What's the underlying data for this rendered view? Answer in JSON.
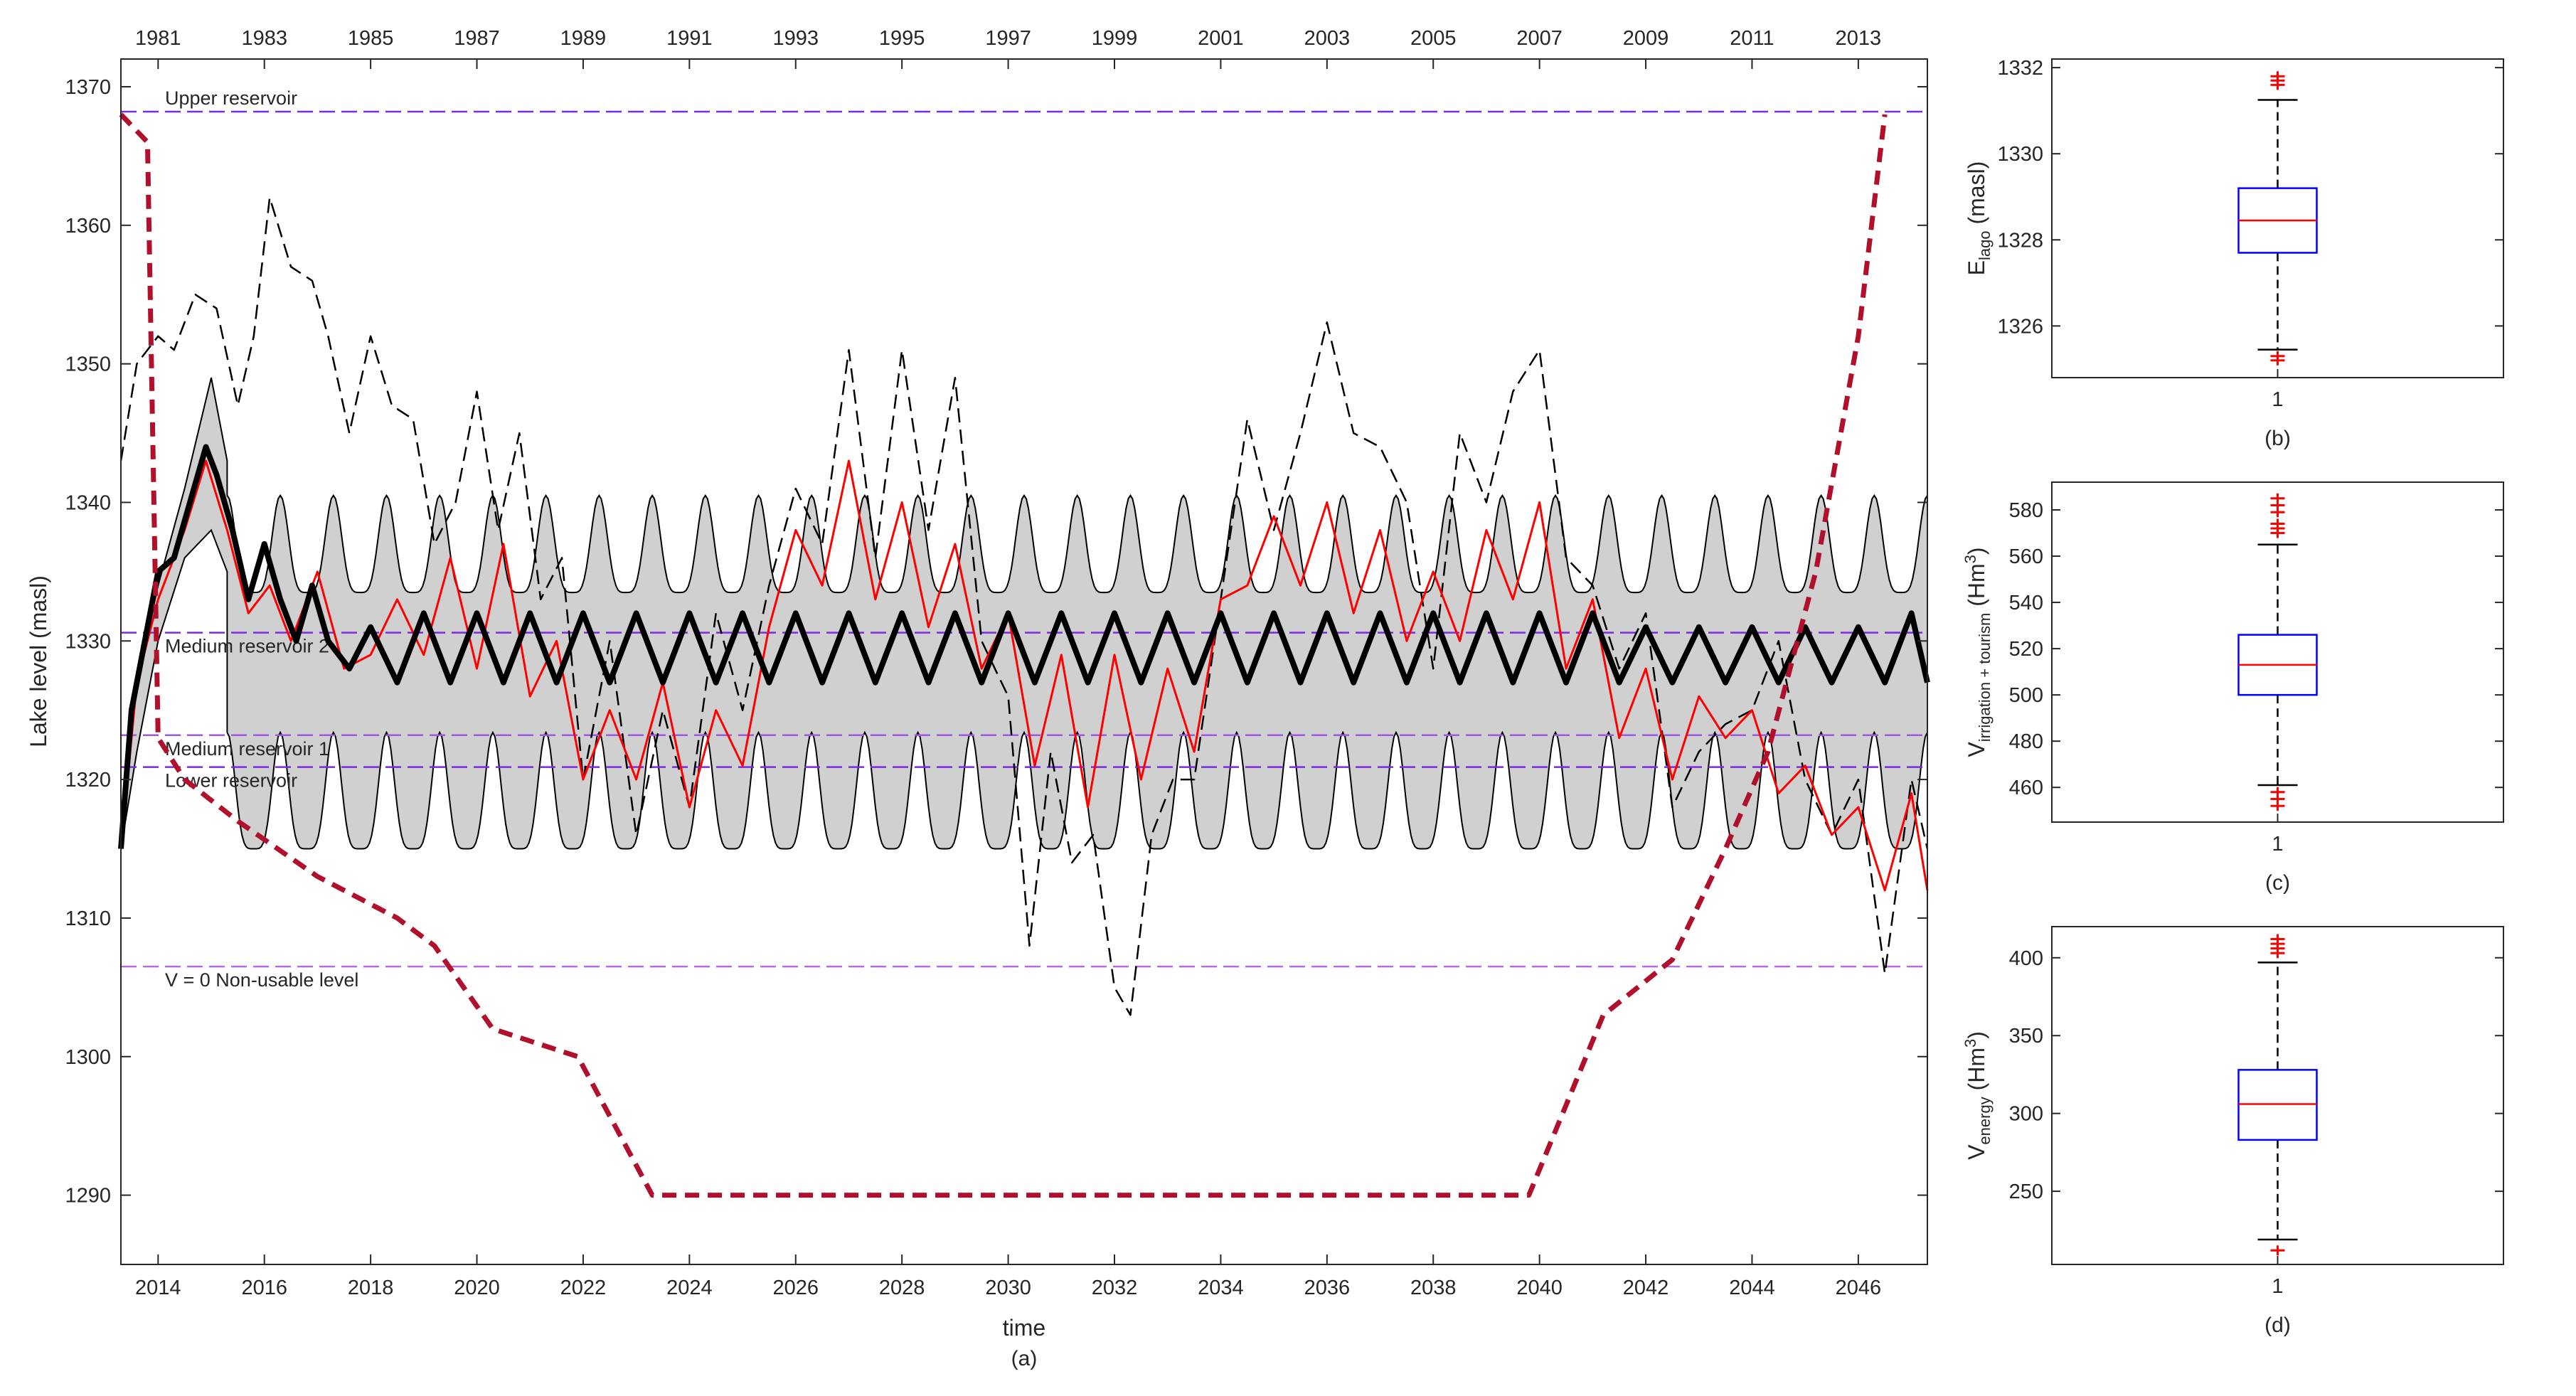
{
  "chart_data": [
    {
      "type": "line",
      "caption": "(a)",
      "xlabel": "time",
      "ylabel": "Lake level (masl)",
      "xlim": [
        2013.3,
        2047.3
      ],
      "ylim": [
        1285,
        1372
      ],
      "x_ticks": [
        "2014",
        "2016",
        "2018",
        "2020",
        "2022",
        "2024",
        "2026",
        "2028",
        "2030",
        "2032",
        "2034",
        "2036",
        "2038",
        "2040",
        "2042",
        "2044",
        "2046"
      ],
      "x_ticks_top": [
        "1981",
        "1983",
        "1985",
        "1987",
        "1989",
        "1991",
        "1993",
        "1995",
        "1997",
        "1999",
        "2001",
        "2003",
        "2005",
        "2007",
        "2009",
        "2011",
        "2013"
      ],
      "y_ticks": [
        "1290",
        "1300",
        "1310",
        "1320",
        "1330",
        "1340",
        "1350",
        "1360",
        "1370"
      ],
      "reference_lines": [
        {
          "label": "Upper reservoir",
          "y": 1368.2,
          "color": "#7b2ae0"
        },
        {
          "label": "Medium reservoir 2",
          "y": 1330.6,
          "color": "#7b2ae0"
        },
        {
          "label": "Medium reservoir 1",
          "y": 1323.2,
          "color": "#9b59e6"
        },
        {
          "label": "Lower reservoir",
          "y": 1320.9,
          "color": "#7b2ae0"
        },
        {
          "label": "V = 0 Non-usable level",
          "y": 1306.5,
          "color": "#b56be8"
        }
      ],
      "series": [
        {
          "style": "bold-black",
          "x": [
            2013.3,
            2013.5,
            2013.8,
            2014.0,
            2014.3,
            2014.6,
            2014.9,
            2015.1,
            2015.4,
            2015.7,
            2016.0,
            2016.3,
            2016.6,
            2016.9,
            2017.2,
            2017.6,
            2018.0,
            2018.5,
            2019.0,
            2019.5,
            2020.0,
            2020.5,
            2021.0,
            2021.5,
            2022.0,
            2022.5,
            2023.0,
            2023.5,
            2024.0,
            2024.5,
            2025.0,
            2025.5,
            2026.0,
            2026.5,
            2027.0,
            2027.5,
            2028.0,
            2028.5,
            2029.0,
            2029.5,
            2030.0,
            2030.5,
            2031.0,
            2031.5,
            2032.0,
            2032.5,
            2033.0,
            2033.5,
            2034.0,
            2034.5,
            2035.0,
            2035.5,
            2036.0,
            2036.5,
            2037.0,
            2037.5,
            2038.0,
            2038.5,
            2039.0,
            2039.5,
            2040.0,
            2040.5,
            2041.0,
            2041.5,
            2042.0,
            2042.5,
            2043.0,
            2043.5,
            2044.0,
            2044.5,
            2045.0,
            2045.5,
            2046.0,
            2046.5,
            2047.0,
            2047.3
          ],
          "y": [
            1315,
            1325,
            1331,
            1335,
            1336,
            1340,
            1344,
            1342,
            1338,
            1333,
            1337,
            1333,
            1330,
            1334,
            1330,
            1328,
            1331,
            1327,
            1332,
            1327,
            1332,
            1327,
            1332,
            1327,
            1332,
            1327,
            1332,
            1327,
            1332,
            1327,
            1332,
            1327,
            1332,
            1327,
            1332,
            1327,
            1332,
            1327,
            1332,
            1327,
            1332,
            1327,
            1332,
            1327,
            1332,
            1327,
            1332,
            1327,
            1332,
            1327,
            1332,
            1327,
            1332,
            1327,
            1332,
            1327,
            1332,
            1327,
            1332,
            1327,
            1332,
            1327,
            1332,
            1327,
            1331,
            1327,
            1331,
            1327,
            1331,
            1327,
            1331,
            1327,
            1331,
            1327,
            1332,
            1327
          ]
        },
        {
          "style": "red",
          "x": [
            2013.3,
            2013.6,
            2014.0,
            2014.5,
            2014.9,
            2015.3,
            2015.7,
            2016.1,
            2016.5,
            2017.0,
            2017.5,
            2018.0,
            2018.5,
            2019.0,
            2019.5,
            2020.0,
            2020.5,
            2021.0,
            2021.5,
            2022.0,
            2022.5,
            2023.0,
            2023.5,
            2024.0,
            2024.5,
            2025.0,
            2025.5,
            2026.0,
            2026.5,
            2027.0,
            2027.5,
            2028.0,
            2028.5,
            2029.0,
            2029.5,
            2030.0,
            2030.5,
            2031.0,
            2031.5,
            2032.0,
            2032.5,
            2033.0,
            2033.5,
            2034.0,
            2034.5,
            2035.0,
            2035.5,
            2036.0,
            2036.5,
            2037.0,
            2037.5,
            2038.0,
            2038.5,
            2039.0,
            2039.5,
            2040.0,
            2040.5,
            2041.0,
            2041.5,
            2042.0,
            2042.5,
            2043.0,
            2043.5,
            2044.0,
            2044.5,
            2045.0,
            2045.5,
            2046.0,
            2046.5,
            2047.0,
            2047.3
          ],
          "y": [
            1315,
            1327,
            1333,
            1338,
            1343,
            1338,
            1332,
            1334,
            1330,
            1335,
            1328,
            1329,
            1333,
            1329,
            1336,
            1328,
            1337,
            1326,
            1330,
            1320,
            1325,
            1320,
            1327,
            1318,
            1325,
            1321,
            1331,
            1338,
            1334,
            1343,
            1333,
            1340,
            1331,
            1337,
            1328,
            1332,
            1321,
            1329,
            1318,
            1329,
            1320,
            1328,
            1322,
            1333,
            1334,
            1339,
            1334,
            1340,
            1332,
            1338,
            1330,
            1335,
            1330,
            1338,
            1333,
            1340,
            1328,
            1333,
            1323,
            1328,
            1320,
            1326,
            1323,
            1325,
            1319,
            1321,
            1316,
            1318,
            1312,
            1319,
            1312
          ]
        },
        {
          "style": "dashed-black",
          "x": [
            2013.3,
            2013.6,
            2014.0,
            2014.3,
            2014.7,
            2015.1,
            2015.5,
            2015.8,
            2016.1,
            2016.5,
            2016.9,
            2017.2,
            2017.6,
            2018.0,
            2018.4,
            2018.8,
            2019.2,
            2019.6,
            2020.0,
            2020.4,
            2020.8,
            2021.2,
            2021.6,
            2022.0,
            2022.5,
            2023.0,
            2023.5,
            2024.0,
            2024.5,
            2025.0,
            2025.5,
            2026.0,
            2026.5,
            2027.0,
            2027.5,
            2028.0,
            2028.5,
            2029.0,
            2029.5,
            2030.0,
            2030.4,
            2030.8,
            2031.2,
            2031.6,
            2032.0,
            2032.3,
            2032.7,
            2033.1,
            2033.5,
            2034.0,
            2034.5,
            2035.0,
            2035.5,
            2036.0,
            2036.5,
            2037.0,
            2037.5,
            2038.0,
            2038.5,
            2039.0,
            2039.5,
            2040.0,
            2040.5,
            2041.0,
            2041.5,
            2042.0,
            2042.5,
            2043.0,
            2043.5,
            2044.0,
            2044.5,
            2045.0,
            2045.5,
            2046.0,
            2046.5,
            2047.0,
            2047.3
          ],
          "y": [
            1343,
            1350,
            1352,
            1351,
            1355,
            1354,
            1347,
            1352,
            1362,
            1357,
            1356,
            1352,
            1345,
            1352,
            1347,
            1346,
            1337,
            1340,
            1348,
            1338,
            1345,
            1333,
            1336,
            1320,
            1330,
            1316,
            1325,
            1318,
            1332,
            1325,
            1334,
            1341,
            1337,
            1351,
            1336,
            1351,
            1338,
            1349,
            1330,
            1326,
            1308,
            1322,
            1314,
            1316,
            1305,
            1303,
            1316,
            1320,
            1320,
            1333,
            1346,
            1338,
            1345,
            1353,
            1345,
            1344,
            1340,
            1328,
            1345,
            1340,
            1348,
            1351,
            1336,
            1334,
            1328,
            1332,
            1318,
            1322,
            1324,
            1325,
            1330,
            1320,
            1316,
            1320,
            1306,
            1320,
            1315
          ]
        },
        {
          "style": "dashed-crimson",
          "x": [
            2013.3,
            2013.8,
            2014.0,
            2014.5,
            2015.5,
            2017.0,
            2018.5,
            2019.2,
            2020.3,
            2021.9,
            2023.3,
            2030.0,
            2035.0,
            2039.8,
            2041.2,
            2042.5,
            2043.5,
            2044.3,
            2045.2,
            2046.0,
            2046.5
          ],
          "y": [
            1368,
            1366,
            1323,
            1320,
            1317,
            1313,
            1310,
            1308,
            1302,
            1300,
            1290,
            1290,
            1290,
            1290,
            1303,
            1307,
            1315,
            1322,
            1335,
            1352,
            1368
          ]
        }
      ],
      "envelope": {
        "upper": {
          "baseline": 1336.5,
          "amplitude": 3.5
        },
        "lower": {
          "baseline": 1319,
          "amplitude": 4.2
        }
      }
    },
    {
      "type": "box",
      "caption": "(b)",
      "ylabel": "E",
      "ylabel_sub": "lago",
      "ylabel_unit": " (masl)",
      "category": "1",
      "ylim": [
        1324.8,
        1332.2
      ],
      "y_ticks": [
        "1326",
        "1328",
        "1330",
        "1332"
      ],
      "whisker_low": 1325.45,
      "q1": 1327.7,
      "median": 1328.45,
      "q3": 1329.2,
      "whisker_high": 1331.25,
      "outliers_high": [
        1331.6,
        1331.7,
        1331.8
      ],
      "outliers_low": [
        1325.2,
        1325.3
      ]
    },
    {
      "type": "box",
      "caption": "(c)",
      "ylabel": "V",
      "ylabel_sub": "irrigation + tourism",
      "ylabel_unit": " (Hm",
      "ylabel_sup": "3",
      "ylabel_tail": ")",
      "category": "1",
      "ylim": [
        445,
        592
      ],
      "y_ticks": [
        "460",
        "480",
        "500",
        "520",
        "540",
        "560",
        "580"
      ],
      "whisker_low": 461,
      "q1": 500,
      "median": 513,
      "q3": 526,
      "whisker_high": 565,
      "outliers_high": [
        570,
        572,
        574,
        579,
        582,
        585
      ],
      "outliers_low": [
        452,
        455,
        458
      ]
    },
    {
      "type": "box",
      "caption": "(d)",
      "ylabel": "V",
      "ylabel_sub": "energy",
      "ylabel_unit": " (Hm",
      "ylabel_sup": "3",
      "ylabel_tail": ")",
      "category": "1",
      "ylim": [
        203,
        420
      ],
      "y_ticks": [
        "250",
        "300",
        "350",
        "400"
      ],
      "whisker_low": 219,
      "q1": 283,
      "median": 306,
      "q3": 328,
      "whisker_high": 397,
      "outliers_high": [
        403,
        406,
        409,
        412
      ],
      "outliers_low": [
        212
      ]
    }
  ]
}
